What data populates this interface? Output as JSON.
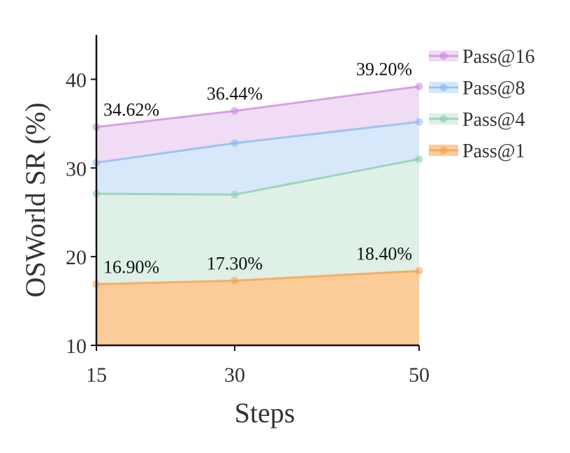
{
  "chart_data": {
    "type": "area",
    "xlabel": "Steps",
    "ylabel": "OSWorld SR (%)",
    "x": [
      15,
      30,
      50
    ],
    "x_tick_labels": [
      "15",
      "30",
      "50"
    ],
    "y_ticks": [
      10,
      20,
      30,
      40
    ],
    "y_tick_labels": [
      "10",
      "20",
      "30",
      "40"
    ],
    "ylim": [
      10,
      45
    ],
    "xlim": [
      15,
      50
    ],
    "x_scale": "linear",
    "legend_position": "top-right outside",
    "grid": false,
    "series": [
      {
        "name": "Pass@16",
        "values": [
          34.62,
          36.44,
          39.2
        ],
        "color": "#cc88dd",
        "fill": "#f0dcf4"
      },
      {
        "name": "Pass@8",
        "values": [
          30.6,
          32.8,
          35.2
        ],
        "color": "#88b8ee",
        "fill": "#d8e8fb"
      },
      {
        "name": "Pass@4",
        "values": [
          27.1,
          27.0,
          31.0
        ],
        "color": "#88ccaa",
        "fill": "#dff0e6"
      },
      {
        "name": "Pass@1",
        "values": [
          16.9,
          17.3,
          18.4
        ],
        "color": "#f0a050",
        "fill": "#fbcb98"
      }
    ],
    "data_labels": [
      {
        "series": "Pass@16",
        "x": 15,
        "text": "34.62%"
      },
      {
        "series": "Pass@16",
        "x": 30,
        "text": "36.44%"
      },
      {
        "series": "Pass@16",
        "x": 50,
        "text": "39.20%"
      },
      {
        "series": "Pass@1",
        "x": 15,
        "text": "16.90%"
      },
      {
        "series": "Pass@1",
        "x": 30,
        "text": "17.30%"
      },
      {
        "series": "Pass@1",
        "x": 50,
        "text": "18.40%"
      }
    ]
  }
}
